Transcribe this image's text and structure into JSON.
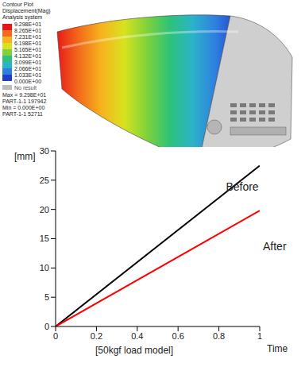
{
  "chart_data": {
    "type": "line",
    "y_label": "[mm]",
    "x_label": "Time",
    "annotations": [
      "[50kgf load model]"
    ],
    "x": [
      0,
      1
    ],
    "series": [
      {
        "name": "Before",
        "color": "#000000",
        "values": [
          0,
          27.5
        ]
      },
      {
        "name": "After",
        "color": "#ff0000",
        "values": [
          0,
          19.8
        ]
      }
    ],
    "xlim": [
      0,
      1
    ],
    "xticks": [
      0,
      0.2,
      0.4,
      0.6,
      0.8,
      1
    ],
    "ylim": [
      0,
      30
    ],
    "yticks": [
      0,
      5,
      10,
      15,
      20,
      25,
      30
    ],
    "grid": false
  },
  "contour_plot": {
    "title": "Contour Plot",
    "quantity": "Displacement(Mag)",
    "system": "Analysis system",
    "colorbar_ticks": [
      {
        "value": 92.98,
        "label": "9.298E+01"
      },
      {
        "value": 82.65,
        "label": "8.265E+01"
      },
      {
        "value": 72.31,
        "label": "7.231E+01"
      },
      {
        "value": 61.98,
        "label": "6.198E+01"
      },
      {
        "value": 51.65,
        "label": "5.165E+01"
      },
      {
        "value": 41.32,
        "label": "4.132E+01"
      },
      {
        "value": 30.99,
        "label": "3.099E+01"
      },
      {
        "value": 20.66,
        "label": "2.066E+01"
      },
      {
        "value": 10.33,
        "label": "1.033E+01"
      },
      {
        "value": 0,
        "label": "0.000E+00"
      }
    ],
    "no_result": "No result",
    "max_text": "Max = 9.298E+01",
    "max_part": "PART-1-1 197942",
    "min_text": "Min = 0.000E+00",
    "min_part": "PART-1-1 52711"
  }
}
